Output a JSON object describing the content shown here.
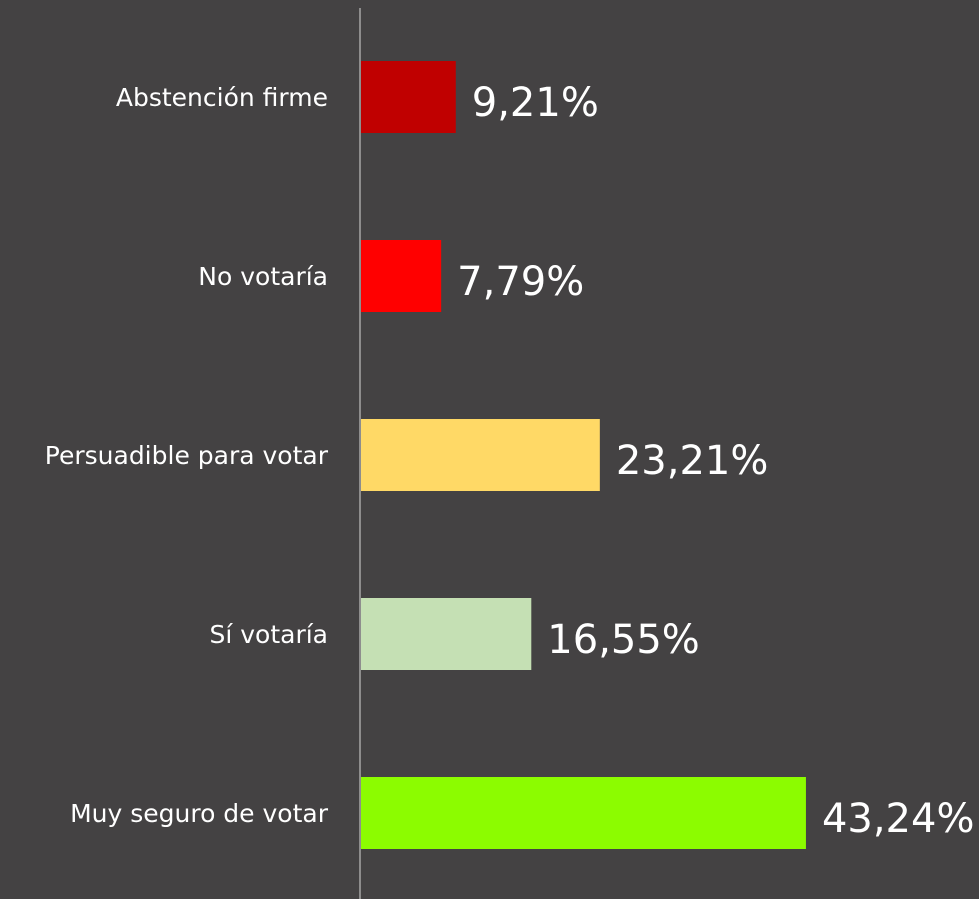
{
  "chart_data": {
    "type": "bar",
    "orientation": "horizontal",
    "categories": [
      "Abstención firme",
      "No votaría",
      "Persuadible para votar",
      "Sí votaría",
      "Muy seguro de votar"
    ],
    "values": [
      9.21,
      7.79,
      23.21,
      16.55,
      43.24
    ],
    "value_labels": [
      "9,21%",
      "7,79%",
      "23,21%",
      "16,55%",
      "43,24%"
    ],
    "colors": [
      "#c00000",
      "#ff0000",
      "#ffd966",
      "#c5e0b4",
      "#8cfc00"
    ]
  }
}
